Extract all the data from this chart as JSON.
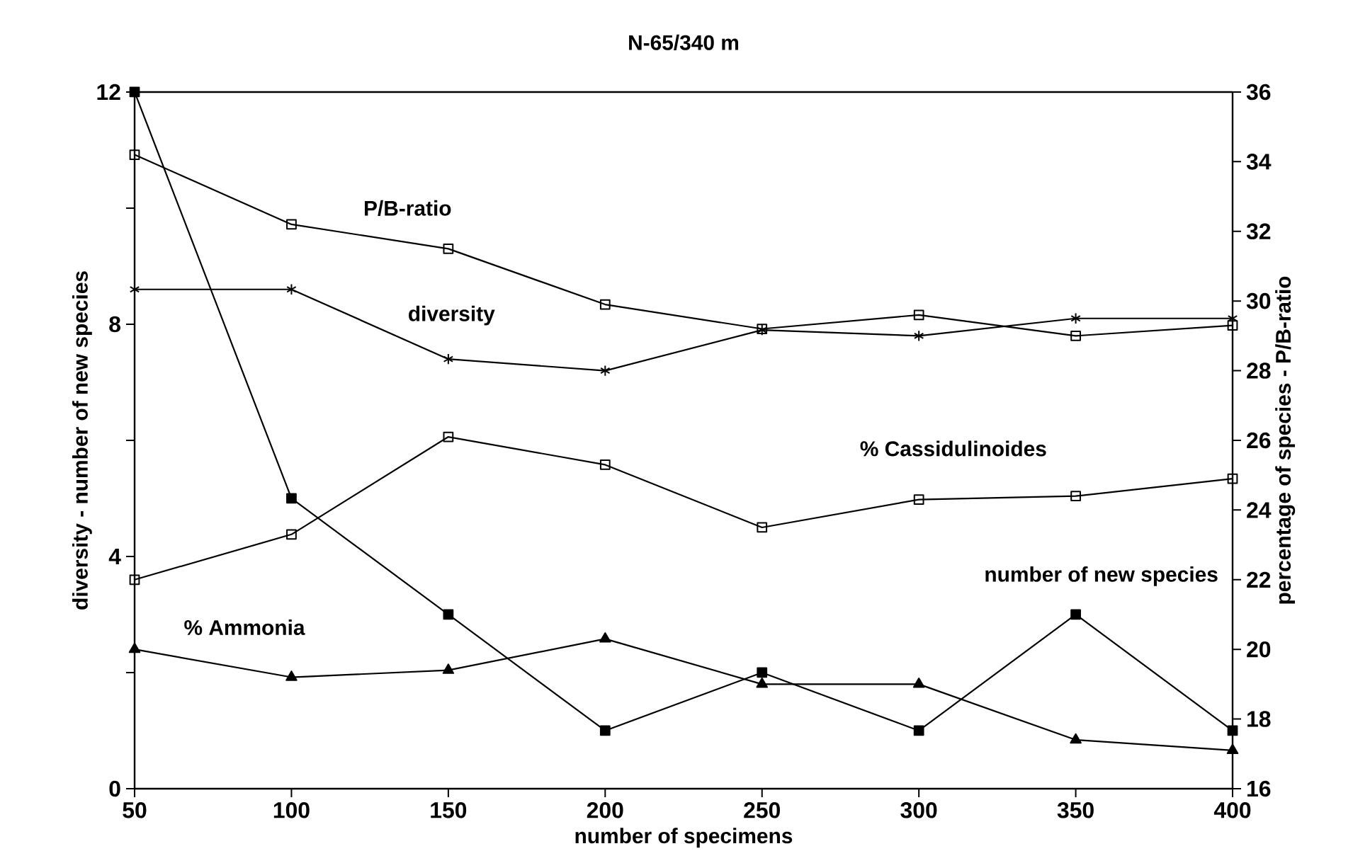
{
  "chart_data": {
    "type": "line",
    "title": "N-65/340 m",
    "xlabel": "number of specimens",
    "ylabel": "diversity - number of new species",
    "y2label": "percentage of species - P/B-ratio",
    "x": [
      50,
      100,
      150,
      200,
      250,
      300,
      350,
      400
    ],
    "xlim": [
      50,
      400
    ],
    "xticks": [
      50,
      100,
      150,
      200,
      250,
      300,
      350,
      400
    ],
    "ylim": [
      0,
      12
    ],
    "yticks": [
      0,
      {
        "value": 2,
        "label": null
      },
      4,
      {
        "value": 6,
        "label": null
      },
      8,
      {
        "value": 10,
        "label": null
      },
      12
    ],
    "y2lim": [
      16,
      36
    ],
    "y2ticks": [
      16,
      18,
      20,
      22,
      24,
      26,
      28,
      30,
      32,
      34,
      36
    ],
    "grid": false,
    "legend": false,
    "series": [
      {
        "name": "number of new species",
        "color": "#000000",
        "marker": "square",
        "values": [
          12,
          5,
          3,
          1,
          2,
          1,
          3,
          1
        ]
      },
      {
        "name": "diversity",
        "color": "#000000",
        "marker": "cross",
        "values": [
          8.6,
          8.6,
          7.4,
          7.2,
          7.9,
          7.8,
          8.1,
          8.1
        ]
      },
      {
        "name": "P/B-ratio",
        "color": "#000000",
        "marker": "square",
        "axis": "y2",
        "values": [
          34.2,
          32.2,
          31.5,
          29.9,
          29.2,
          29.6,
          29.0,
          29.3
        ]
      },
      {
        "name": "% Cassidulinoides",
        "color": "#000000",
        "marker": "square",
        "axis": "y2",
        "values": [
          22.0,
          23.3,
          26.1,
          25.3,
          23.5,
          24.3,
          24.4,
          24.9
        ]
      },
      {
        "name": "% Ammonia",
        "color": "#000000",
        "marker": "triangle",
        "axis": "y2",
        "values": [
          20.0,
          19.2,
          19.4,
          20.3,
          19.0,
          19.0,
          17.4,
          17.1
        ]
      }
    ]
  }
}
